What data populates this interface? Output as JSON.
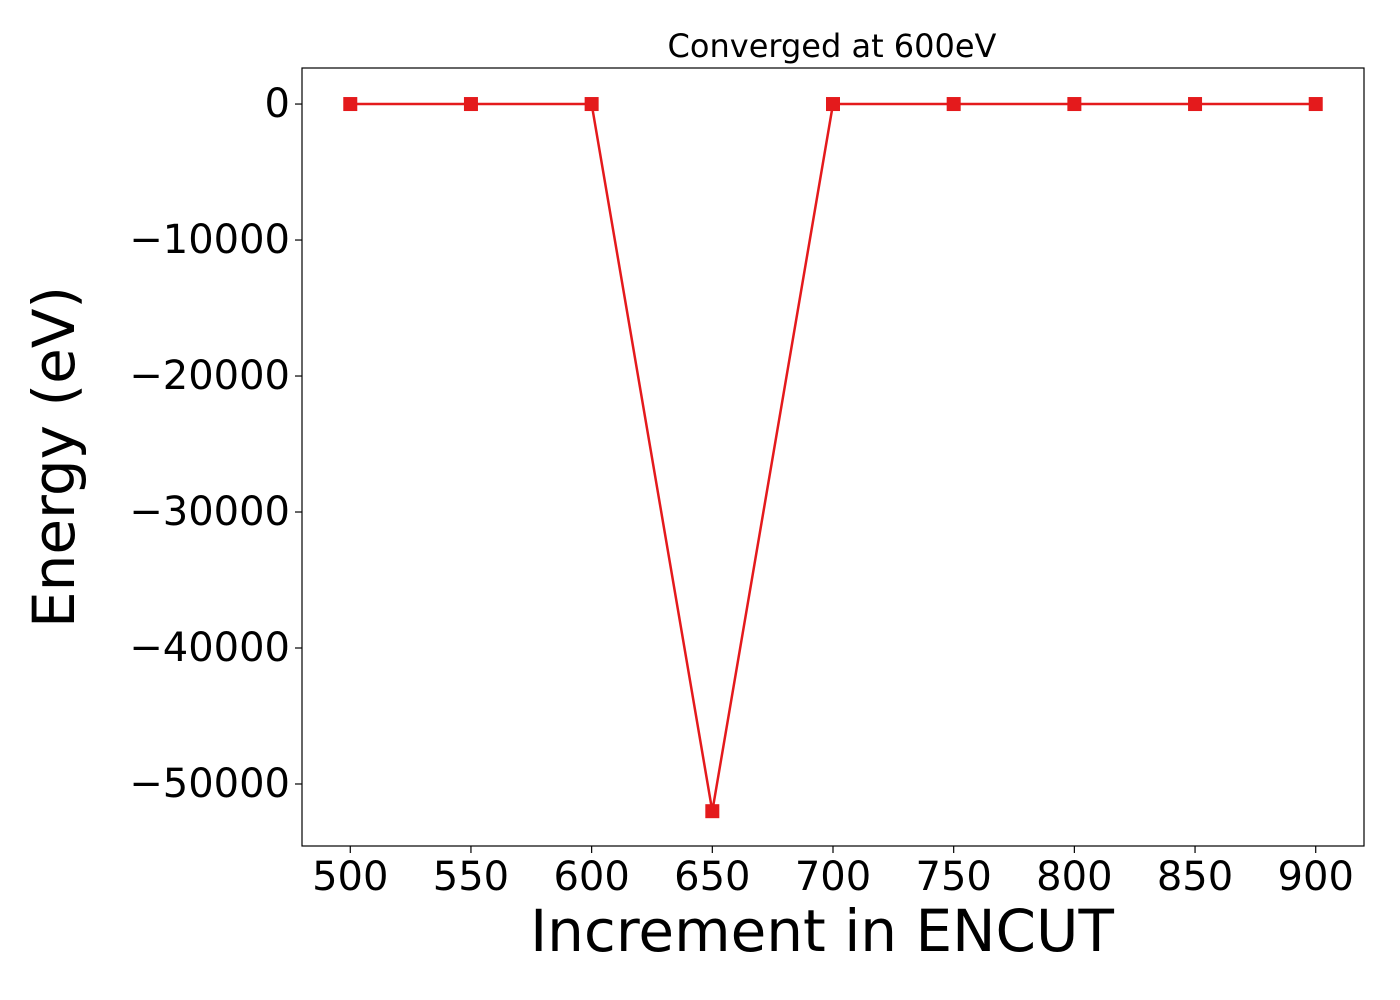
{
  "chart_data": {
    "type": "line",
    "title": "Converged at 600eV",
    "x_label": "Increment in ENCUT",
    "y_label": "Energy (eV)",
    "x": [
      500,
      550,
      600,
      650,
      700,
      750,
      800,
      850,
      900
    ],
    "series": [
      {
        "color": "#e41a1c",
        "values": [
          0,
          0,
          0,
          -52000,
          0,
          0,
          0,
          0,
          0
        ]
      }
    ],
    "xlim": [
      480,
      920
    ],
    "xticks": [
      500,
      550,
      600,
      650,
      700,
      750,
      800,
      850,
      900
    ],
    "ylim": [
      -54560,
      2650
    ],
    "yticks": [
      0,
      {
        "value": -10000,
        "label": "−10000"
      },
      {
        "value": -20000,
        "label": "−20000"
      },
      {
        "value": -30000,
        "label": "−30000"
      },
      {
        "value": -40000,
        "label": "−40000"
      },
      {
        "value": -50000,
        "label": "−50000"
      }
    ],
    "grid": false
  }
}
